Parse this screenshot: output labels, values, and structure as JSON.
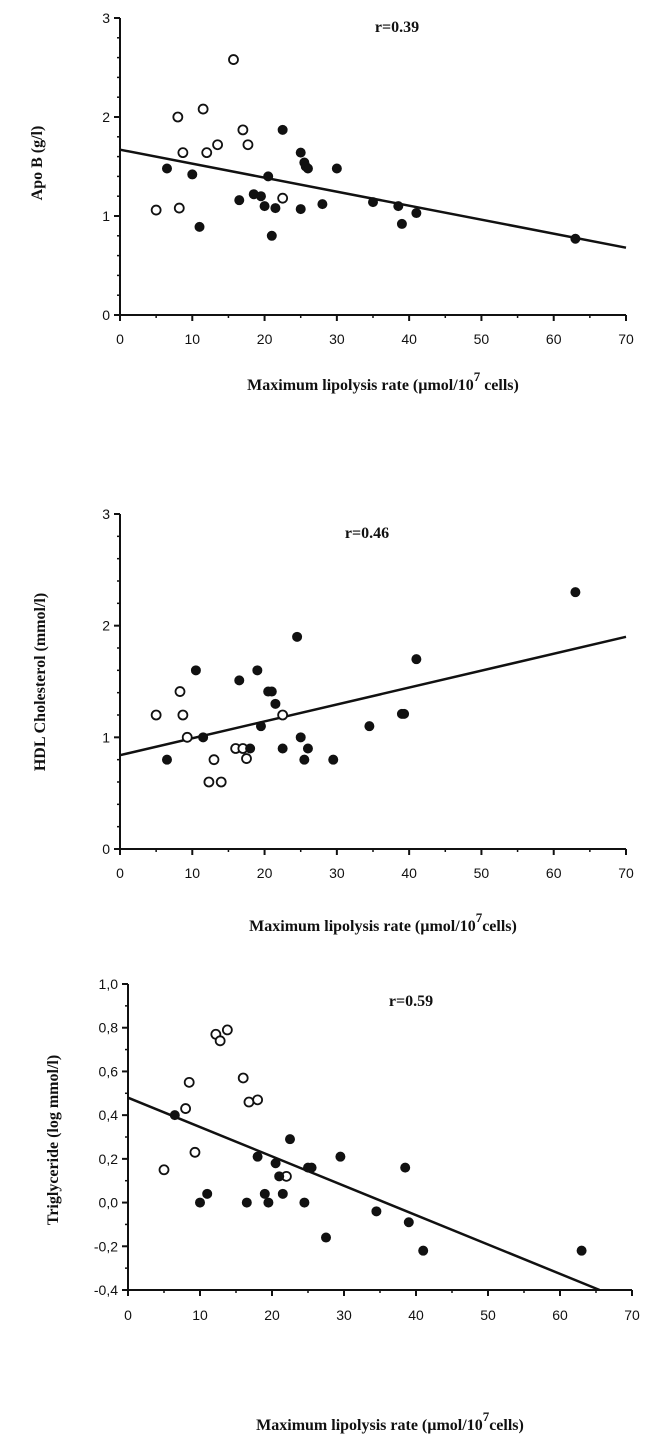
{
  "chart_data": [
    {
      "type": "scatter",
      "annotation": "r=0.39",
      "xlabel": "Maximum lipolysis rate (µmol/10",
      "xlabel_sup": "7",
      "xlabel_end": " cells)",
      "ylabel": "Apo B (g/l)",
      "xlim": [
        0,
        70
      ],
      "ylim": [
        0,
        3
      ],
      "x_ticks": [
        0,
        10,
        20,
        30,
        40,
        50,
        60,
        70
      ],
      "x_tick_labels": [
        "0",
        "10",
        "20",
        "30",
        "40",
        "50",
        "60",
        "70"
      ],
      "y_ticks": [
        0,
        1,
        2,
        3
      ],
      "y_tick_labels": [
        "0",
        "1",
        "2",
        "3"
      ],
      "grid": false,
      "trendline": [
        [
          0,
          1.67
        ],
        [
          70,
          0.68
        ]
      ],
      "series": [
        {
          "marker": "open",
          "x": [
            5,
            8,
            8.2,
            8.7,
            11.5,
            12,
            13.5,
            15.7,
            17,
            17.7,
            22.5
          ],
          "y": [
            1.06,
            2.0,
            1.08,
            1.64,
            2.08,
            1.64,
            1.72,
            2.58,
            1.87,
            1.72,
            1.18
          ]
        },
        {
          "marker": "filled",
          "x": [
            6.5,
            10,
            11,
            16.5,
            18.5,
            19.5,
            20,
            20.5,
            21,
            21.5,
            22.5,
            25,
            25.5,
            25.7,
            26,
            25,
            28,
            30,
            35,
            38.5,
            39,
            41,
            63
          ],
          "y": [
            1.48,
            1.42,
            0.89,
            1.16,
            1.22,
            1.2,
            1.1,
            1.4,
            0.8,
            1.08,
            1.87,
            1.64,
            1.54,
            1.5,
            1.48,
            1.07,
            1.12,
            1.48,
            1.14,
            1.1,
            0.92,
            1.03,
            0.77
          ]
        }
      ]
    },
    {
      "type": "scatter",
      "annotation": "r=0.46",
      "xlabel": "Maximum lipolysis rate (µmol/10",
      "xlabel_sup": "7",
      "xlabel_end": "cells)",
      "ylabel": "HDL Cholesterol (mmol/l)",
      "xlim": [
        0,
        70
      ],
      "ylim": [
        0,
        3
      ],
      "x_ticks": [
        0,
        10,
        20,
        30,
        40,
        50,
        60,
        70
      ],
      "x_tick_labels": [
        "0",
        "10",
        "20",
        "30",
        "40",
        "50",
        "60",
        "70"
      ],
      "y_ticks": [
        0,
        1,
        2,
        3
      ],
      "y_tick_labels": [
        "0",
        "1",
        "2",
        "3"
      ],
      "grid": false,
      "trendline": [
        [
          0,
          0.84
        ],
        [
          70,
          1.9
        ]
      ],
      "series": [
        {
          "marker": "open",
          "x": [
            5,
            8.3,
            8.7,
            9.3,
            12.3,
            13,
            14,
            16,
            17,
            17.5,
            22.5
          ],
          "y": [
            1.2,
            1.41,
            1.2,
            1.0,
            0.6,
            0.8,
            0.6,
            0.9,
            0.9,
            0.81,
            1.2
          ]
        },
        {
          "marker": "filled",
          "x": [
            6.5,
            10.5,
            11.5,
            16.5,
            18,
            19,
            19.5,
            20.5,
            21,
            21.5,
            22.5,
            24.5,
            25,
            25.5,
            26,
            29.5,
            34.5,
            39,
            39.3,
            41,
            63
          ],
          "y": [
            0.8,
            1.6,
            1.0,
            1.51,
            0.9,
            1.6,
            1.1,
            1.41,
            1.41,
            1.3,
            0.9,
            1.9,
            1.0,
            0.8,
            0.9,
            0.8,
            1.1,
            1.21,
            1.21,
            1.7,
            2.3
          ]
        }
      ]
    },
    {
      "type": "scatter",
      "annotation": "r=0.59",
      "xlabel": "Maximum lipolysis rate (µmol/10",
      "xlabel_sup": "7",
      "xlabel_end": "cells)",
      "ylabel": "Triglyceride (log mmol/l)",
      "xlim": [
        0,
        70
      ],
      "ylim": [
        -0.4,
        1.0
      ],
      "x_ticks": [
        0,
        10,
        20,
        30,
        40,
        50,
        60,
        70
      ],
      "x_tick_labels": [
        "0",
        "10",
        "20",
        "30",
        "40",
        "50",
        "60",
        "70"
      ],
      "y_ticks": [
        -0.4,
        -0.2,
        0.0,
        0.2,
        0.4,
        0.6,
        0.8,
        1.0
      ],
      "y_tick_labels": [
        "-0,4",
        "-0,2",
        "0,0",
        "0,2",
        "0,4",
        "0,6",
        "0,8",
        "1,0"
      ],
      "grid": false,
      "trendline": [
        [
          0,
          0.48
        ],
        [
          65.5,
          -0.4
        ]
      ],
      "series": [
        {
          "marker": "open",
          "x": [
            5,
            8,
            8.5,
            9.3,
            12.2,
            12.8,
            13.8,
            16,
            16.8,
            18,
            22
          ],
          "y": [
            0.15,
            0.43,
            0.55,
            0.23,
            0.77,
            0.74,
            0.79,
            0.57,
            0.46,
            0.47,
            0.12
          ]
        },
        {
          "marker": "filled",
          "x": [
            6.5,
            10,
            11,
            16.5,
            18,
            19,
            19.5,
            20.5,
            21,
            21.5,
            22.5,
            24.5,
            25,
            25.5,
            27.5,
            29.5,
            34.5,
            38.5,
            39,
            41,
            63
          ],
          "y": [
            0.4,
            0.0,
            0.04,
            0.0,
            0.21,
            0.04,
            0.0,
            0.18,
            0.12,
            0.04,
            0.29,
            0.0,
            0.16,
            0.16,
            -0.16,
            0.21,
            -0.04,
            0.16,
            -0.09,
            -0.22,
            -0.22
          ]
        }
      ]
    }
  ]
}
